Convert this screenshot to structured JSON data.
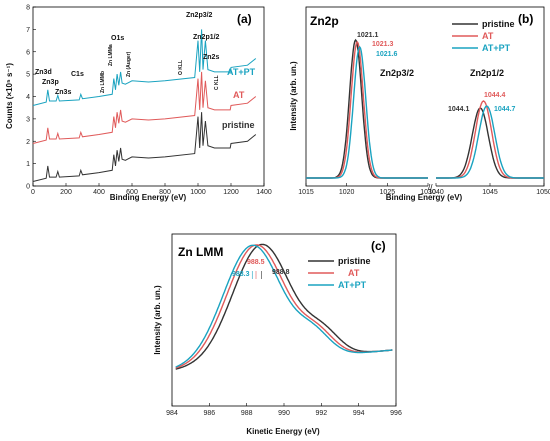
{
  "colors": {
    "pristine": "#333333",
    "AT": "#e05a5a",
    "ATPT": "#1aa3c0"
  },
  "chart_data": [
    {
      "panel": "(a)",
      "type": "line",
      "xlabel": "Binding Energy (eV)",
      "ylabel": "Counts (×10⁵ s⁻¹)",
      "xlim": [
        0,
        1400
      ],
      "ylim": [
        0,
        8
      ],
      "xticks": [
        "0",
        "200",
        "400",
        "600",
        "800",
        "1000",
        "1200",
        "1400"
      ],
      "yticks": [
        "0",
        "1",
        "2",
        "3",
        "4",
        "5",
        "6",
        "7",
        "8"
      ],
      "series_labels": [
        "AT+PT",
        "AT",
        "pristine"
      ],
      "series": [
        {
          "key": "pristine",
          "offset": 0.2,
          "x": [
            0,
            80,
            90,
            100,
            140,
            150,
            160,
            280,
            290,
            300,
            400,
            480,
            490,
            500,
            510,
            520,
            531,
            540,
            560,
            600,
            700,
            800,
            980,
            1000,
            1010,
            1022,
            1030,
            1045,
            1060,
            1100,
            1195,
            1200,
            1300,
            1350
          ],
          "y": [
            0,
            0.15,
            0.7,
            0.2,
            0.2,
            0.45,
            0.2,
            0.25,
            0.5,
            0.3,
            0.4,
            0.5,
            1.2,
            0.7,
            1.4,
            0.9,
            1.5,
            1.0,
            0.95,
            1.1,
            1.05,
            1.1,
            1.25,
            2.9,
            1.5,
            3.1,
            1.6,
            2.7,
            1.6,
            1.5,
            1.5,
            1.7,
            1.8,
            2.1
          ]
        },
        {
          "key": "AT",
          "offset": 1.9,
          "x": [
            0,
            80,
            90,
            100,
            140,
            150,
            160,
            280,
            290,
            300,
            400,
            480,
            490,
            500,
            510,
            520,
            531,
            540,
            560,
            600,
            700,
            800,
            980,
            1000,
            1010,
            1022,
            1030,
            1045,
            1060,
            1100,
            1195,
            1200,
            1300,
            1350
          ],
          "y": [
            0,
            0.15,
            0.7,
            0.2,
            0.2,
            0.45,
            0.2,
            0.25,
            0.5,
            0.3,
            0.4,
            0.5,
            1.2,
            0.7,
            1.4,
            0.9,
            1.5,
            1.0,
            0.95,
            1.1,
            1.05,
            1.1,
            1.25,
            2.9,
            1.5,
            3.2,
            1.6,
            2.8,
            1.6,
            1.5,
            1.5,
            1.7,
            1.8,
            2.1
          ]
        },
        {
          "key": "ATPT",
          "offset": 3.6,
          "x": [
            0,
            80,
            90,
            100,
            140,
            150,
            160,
            280,
            290,
            300,
            400,
            480,
            490,
            500,
            510,
            520,
            531,
            540,
            560,
            600,
            700,
            800,
            980,
            1000,
            1010,
            1022,
            1030,
            1045,
            1060,
            1100,
            1195,
            1200,
            1300,
            1350
          ],
          "y": [
            0,
            0.15,
            0.7,
            0.2,
            0.2,
            0.45,
            0.2,
            0.25,
            0.5,
            0.3,
            0.4,
            0.5,
            1.2,
            0.7,
            1.4,
            0.9,
            1.5,
            1.0,
            0.95,
            1.1,
            1.05,
            1.1,
            1.25,
            2.9,
            1.5,
            3.4,
            1.6,
            2.9,
            1.6,
            1.5,
            1.5,
            1.7,
            1.8,
            2.1
          ]
        }
      ],
      "annotations": [
        "Zn3d",
        "Zn3p",
        "Zn3s",
        "C1s",
        "Zn LMMb",
        "Zn LMMa",
        "O1s",
        "Zn (Auger)",
        "O KLL",
        "Zn2p3/2",
        "Zn2p1/2",
        "Zn2s",
        "C KLL"
      ]
    },
    {
      "panel": "(b)",
      "type": "line",
      "title": "Zn2p",
      "xlabel": "Binding Energy (eV)",
      "ylabel": "Intensity (arb. un.)",
      "xticks": [
        "1015",
        "1020",
        "1025",
        "1030",
        "1040",
        "1045",
        "1050"
      ],
      "segments": [
        [
          1015,
          1030
        ],
        [
          1040,
          1050
        ]
      ],
      "legend": [
        "pristine",
        "AT",
        "AT+PT"
      ],
      "peaks": [
        {
          "key": "pristine",
          "p32": 1021.1,
          "p12": 1044.1
        },
        {
          "key": "AT",
          "p32": 1021.3,
          "p12": 1044.4
        },
        {
          "key": "ATPT",
          "p32": 1021.6,
          "p12": 1044.7
        }
      ],
      "peak_labels_32": [
        "1021.1",
        "1021.3",
        "1021.6"
      ],
      "peak_labels_12": [
        "1044.1",
        "1044.4",
        "1044.7"
      ],
      "subshell_labels": [
        "Zn2p3/2",
        "Zn2p1/2"
      ]
    },
    {
      "panel": "(c)",
      "type": "line",
      "title": "Zn LMM",
      "xlabel": "Kinetic Energy (eV)",
      "ylabel": "Intensity (arb. un.)",
      "xlim": [
        984,
        996
      ],
      "xticks": [
        "984",
        "986",
        "988",
        "990",
        "992",
        "994",
        "996"
      ],
      "legend": [
        "pristine",
        "AT",
        "AT+PT"
      ],
      "peaks": [
        {
          "key": "pristine",
          "center": 988.8
        },
        {
          "key": "AT",
          "center": 988.5
        },
        {
          "key": "ATPT",
          "center": 988.3
        }
      ],
      "peak_labels": [
        "988.3",
        "988.5",
        "988.8"
      ]
    }
  ]
}
